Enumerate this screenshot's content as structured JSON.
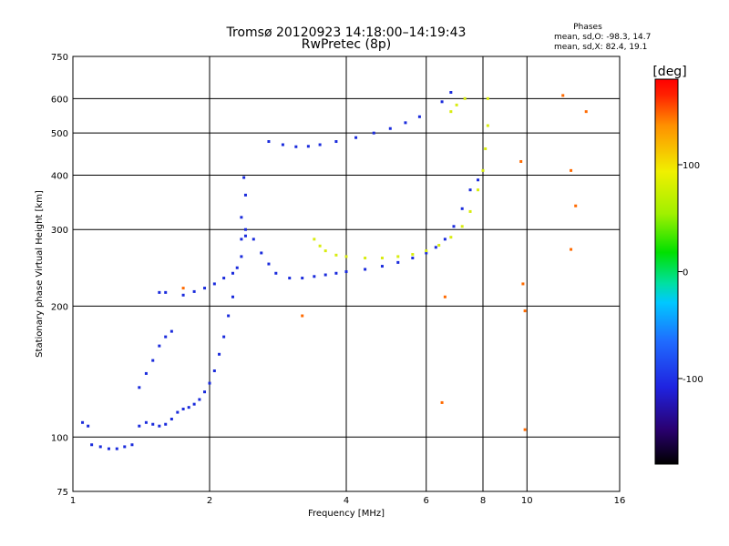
{
  "chart_data": {
    "type": "scatter",
    "title": "Tromsø 20120923 14:18:00–14:19:43",
    "subtitle": "RwPretec (8p)",
    "xlabel": "Frequency [MHz]",
    "ylabel": "Stationary phase Virtual Height [km]",
    "x_scale": "log",
    "y_scale": "log",
    "xlim": [
      1,
      16
    ],
    "ylim": [
      75,
      750
    ],
    "x_ticks": [
      1,
      2,
      4,
      6,
      8,
      10,
      16
    ],
    "y_ticks": [
      75,
      100,
      200,
      300,
      400,
      500,
      600,
      750
    ],
    "grid": true,
    "phase_info": {
      "title": "Phases",
      "line_o": "mean, sd,O: -98.3, 14.7",
      "line_x": "mean, sd,X:  82.4, 19.1"
    },
    "colorbar": {
      "label": "[deg]",
      "ticks": [
        100,
        0,
        -100
      ],
      "range": [
        -180,
        180
      ],
      "colors": [
        "#000000",
        "#2a0070",
        "#1f23e0",
        "#1f6cff",
        "#00c8ff",
        "#00e0a0",
        "#00e000",
        "#a0f000",
        "#f0f000",
        "#ff9000",
        "#ff2000",
        "#ff0000"
      ]
    },
    "series": [
      {
        "color": "#1a2bdc",
        "points": [
          [
            1.05,
            108
          ],
          [
            1.08,
            106
          ],
          [
            1.1,
            96
          ],
          [
            1.15,
            95
          ],
          [
            1.2,
            94
          ],
          [
            1.25,
            94
          ],
          [
            1.3,
            95
          ],
          [
            1.35,
            96
          ],
          [
            1.4,
            106
          ],
          [
            1.45,
            108
          ],
          [
            1.5,
            107
          ],
          [
            1.55,
            106
          ],
          [
            1.6,
            107
          ],
          [
            1.65,
            110
          ],
          [
            1.7,
            114
          ],
          [
            1.75,
            116
          ],
          [
            1.8,
            117
          ],
          [
            1.85,
            119
          ],
          [
            1.9,
            122
          ],
          [
            1.95,
            127
          ],
          [
            2.0,
            133
          ],
          [
            2.05,
            142
          ],
          [
            2.1,
            155
          ],
          [
            2.15,
            170
          ],
          [
            2.2,
            190
          ],
          [
            2.25,
            210
          ],
          [
            2.3,
            245
          ],
          [
            2.35,
            285
          ],
          [
            2.4,
            300
          ],
          [
            2.5,
            285
          ],
          [
            2.6,
            265
          ],
          [
            2.7,
            250
          ],
          [
            2.8,
            238
          ],
          [
            3.0,
            232
          ],
          [
            3.2,
            232
          ],
          [
            3.4,
            234
          ],
          [
            3.6,
            236
          ],
          [
            3.8,
            238
          ],
          [
            4.0,
            240
          ],
          [
            4.4,
            243
          ],
          [
            4.8,
            247
          ],
          [
            5.2,
            252
          ],
          [
            5.6,
            258
          ],
          [
            6.0,
            265
          ],
          [
            6.3,
            273
          ],
          [
            6.6,
            285
          ],
          [
            6.9,
            305
          ],
          [
            7.2,
            335
          ],
          [
            7.5,
            370
          ],
          [
            7.8,
            390
          ],
          [
            1.4,
            130
          ],
          [
            1.45,
            140
          ],
          [
            1.5,
            150
          ],
          [
            1.55,
            162
          ],
          [
            1.6,
            170
          ],
          [
            1.65,
            175
          ],
          [
            1.55,
            215
          ],
          [
            1.6,
            215
          ],
          [
            1.75,
            212
          ],
          [
            1.85,
            216
          ],
          [
            1.95,
            220
          ],
          [
            2.05,
            225
          ],
          [
            2.15,
            232
          ],
          [
            2.25,
            238
          ],
          [
            2.35,
            260
          ],
          [
            2.4,
            290
          ],
          [
            2.35,
            320
          ],
          [
            2.4,
            360
          ],
          [
            2.38,
            395
          ],
          [
            2.7,
            478
          ],
          [
            2.9,
            470
          ],
          [
            3.1,
            465
          ],
          [
            3.3,
            466
          ],
          [
            3.5,
            470
          ],
          [
            3.8,
            478
          ],
          [
            4.2,
            488
          ],
          [
            4.6,
            500
          ],
          [
            5.0,
            512
          ],
          [
            5.4,
            528
          ],
          [
            5.8,
            545
          ],
          [
            6.5,
            590
          ],
          [
            6.8,
            620
          ]
        ]
      },
      {
        "color": "#d8ec10",
        "points": [
          [
            3.4,
            285
          ],
          [
            3.5,
            275
          ],
          [
            3.6,
            268
          ],
          [
            3.8,
            262
          ],
          [
            4.0,
            260
          ],
          [
            4.4,
            258
          ],
          [
            4.8,
            258
          ],
          [
            5.2,
            260
          ],
          [
            5.6,
            263
          ],
          [
            6.0,
            268
          ],
          [
            6.4,
            276
          ],
          [
            6.8,
            288
          ],
          [
            7.2,
            305
          ],
          [
            7.5,
            330
          ],
          [
            7.8,
            370
          ],
          [
            8.0,
            410
          ],
          [
            8.1,
            460
          ],
          [
            8.2,
            520
          ],
          [
            8.2,
            600
          ],
          [
            6.8,
            560
          ],
          [
            7.0,
            580
          ],
          [
            7.3,
            600
          ]
        ]
      },
      {
        "color": "#ff6a00",
        "points": [
          [
            1.75,
            220
          ],
          [
            3.2,
            190
          ],
          [
            6.6,
            210
          ],
          [
            9.8,
            225
          ],
          [
            9.9,
            195
          ],
          [
            6.5,
            120
          ],
          [
            9.9,
            104
          ],
          [
            12.5,
            270
          ],
          [
            12.5,
            410
          ],
          [
            12.0,
            610
          ],
          [
            13.5,
            560
          ],
          [
            12.8,
            340
          ],
          [
            9.7,
            430
          ]
        ]
      }
    ]
  }
}
